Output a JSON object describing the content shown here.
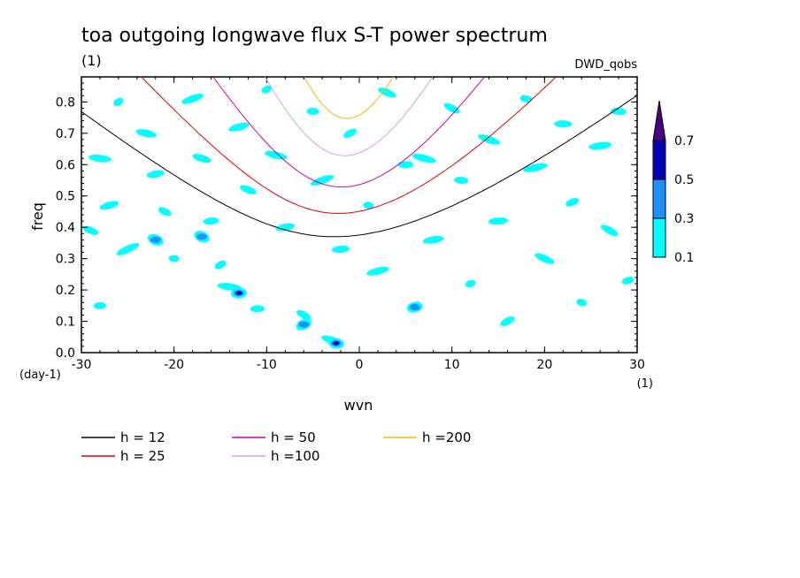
{
  "chart_data": {
    "type": "heatmap",
    "title": "toa outgoing longwave flux S-T power spectrum",
    "subtitle_left": "(1)",
    "subtitle_right": "DWD_qobs",
    "xlabel": "wvn",
    "ylabel": "freq",
    "x_unit": "(1)",
    "y_unit": "(day-1)",
    "xlim": [
      -30,
      30
    ],
    "ylim": [
      0,
      0.88
    ],
    "x_ticks": [
      -30,
      -20,
      -10,
      0,
      10,
      20,
      30
    ],
    "x_tick_labels": [
      "-30",
      "-20",
      "-10",
      "0",
      "10",
      "20",
      "30"
    ],
    "y_ticks": [
      0,
      0.1,
      0.2,
      0.3,
      0.4,
      0.5,
      0.6,
      0.7,
      0.8
    ],
    "y_tick_labels": [
      "0.0",
      "0.1",
      "0.2",
      "0.3",
      "0.4",
      "0.5",
      "0.6",
      "0.7",
      "0.8"
    ],
    "colorbar": {
      "levels": [
        "0.1",
        "0.3",
        "0.5",
        "0.7"
      ],
      "colors": [
        "#00ffff",
        "#1e90ff",
        "#0000b4",
        "#4b0082"
      ]
    },
    "contour_blobs": [
      {
        "x": -26,
        "y": 0.8,
        "level": 0
      },
      {
        "x": -28,
        "y": 0.62,
        "level": 0
      },
      {
        "x": -27,
        "y": 0.47,
        "level": 0
      },
      {
        "x": -29,
        "y": 0.39,
        "level": 0
      },
      {
        "x": -28,
        "y": 0.15,
        "level": 0
      },
      {
        "x": -25,
        "y": 0.33,
        "level": 0
      },
      {
        "x": -23,
        "y": 0.7,
        "level": 0
      },
      {
        "x": -22,
        "y": 0.57,
        "level": 0
      },
      {
        "x": -21,
        "y": 0.45,
        "level": 0
      },
      {
        "x": -20,
        "y": 0.3,
        "level": 0
      },
      {
        "x": -18,
        "y": 0.81,
        "level": 0
      },
      {
        "x": -17,
        "y": 0.62,
        "level": 0
      },
      {
        "x": -16,
        "y": 0.42,
        "level": 0
      },
      {
        "x": -15,
        "y": 0.28,
        "level": 0
      },
      {
        "x": -14,
        "y": 0.21,
        "level": 0
      },
      {
        "x": -13,
        "y": 0.72,
        "level": 0
      },
      {
        "x": -12,
        "y": 0.52,
        "level": 0
      },
      {
        "x": -11,
        "y": 0.14,
        "level": 0
      },
      {
        "x": -10,
        "y": 0.84,
        "level": 0
      },
      {
        "x": -9,
        "y": 0.63,
        "level": 0
      },
      {
        "x": -8,
        "y": 0.4,
        "level": 0
      },
      {
        "x": -6,
        "y": 0.12,
        "level": 0
      },
      {
        "x": -5,
        "y": 0.77,
        "level": 0
      },
      {
        "x": -4,
        "y": 0.55,
        "level": 0
      },
      {
        "x": -3,
        "y": 0.04,
        "level": 0
      },
      {
        "x": -2,
        "y": 0.33,
        "level": 0
      },
      {
        "x": -1,
        "y": 0.7,
        "level": 0
      },
      {
        "x": 1,
        "y": 0.47,
        "level": 0
      },
      {
        "x": 2,
        "y": 0.26,
        "level": 0
      },
      {
        "x": 3,
        "y": 0.83,
        "level": 0
      },
      {
        "x": 5,
        "y": 0.6,
        "level": 0
      },
      {
        "x": 6,
        "y": 0.15,
        "level": 0
      },
      {
        "x": 7,
        "y": 0.62,
        "level": 0
      },
      {
        "x": 8,
        "y": 0.36,
        "level": 0
      },
      {
        "x": 10,
        "y": 0.78,
        "level": 0
      },
      {
        "x": 11,
        "y": 0.55,
        "level": 0
      },
      {
        "x": 12,
        "y": 0.22,
        "level": 0
      },
      {
        "x": 14,
        "y": 0.68,
        "level": 0
      },
      {
        "x": 15,
        "y": 0.42,
        "level": 0
      },
      {
        "x": 16,
        "y": 0.1,
        "level": 0
      },
      {
        "x": 18,
        "y": 0.81,
        "level": 0
      },
      {
        "x": 19,
        "y": 0.59,
        "level": 0
      },
      {
        "x": 20,
        "y": 0.3,
        "level": 0
      },
      {
        "x": 22,
        "y": 0.73,
        "level": 0
      },
      {
        "x": 23,
        "y": 0.48,
        "level": 0
      },
      {
        "x": 24,
        "y": 0.16,
        "level": 0
      },
      {
        "x": 26,
        "y": 0.66,
        "level": 0
      },
      {
        "x": 27,
        "y": 0.39,
        "level": 0
      },
      {
        "x": 28,
        "y": 0.77,
        "level": 0
      },
      {
        "x": 29,
        "y": 0.23,
        "level": 0
      },
      {
        "x": -22,
        "y": 0.36,
        "level": 1
      },
      {
        "x": -13,
        "y": 0.19,
        "level": 2
      },
      {
        "x": -6,
        "y": 0.09,
        "level": 1
      },
      {
        "x": -2.5,
        "y": 0.03,
        "level": 2
      },
      {
        "x": 6,
        "y": 0.145,
        "level": 1
      },
      {
        "x": -17,
        "y": 0.37,
        "level": 1
      }
    ],
    "series": [
      {
        "name": "h = 12",
        "color": "#000000",
        "h": 12
      },
      {
        "name": "h = 25",
        "color": "#dd0000",
        "h": 25
      },
      {
        "name": "h = 50",
        "color": "#cc00aa",
        "h": 50
      },
      {
        "name": "h =100",
        "color": "#dd99dd",
        "h": 100
      },
      {
        "name": "h =200",
        "color": "#eebb00",
        "h": 200
      }
    ]
  }
}
